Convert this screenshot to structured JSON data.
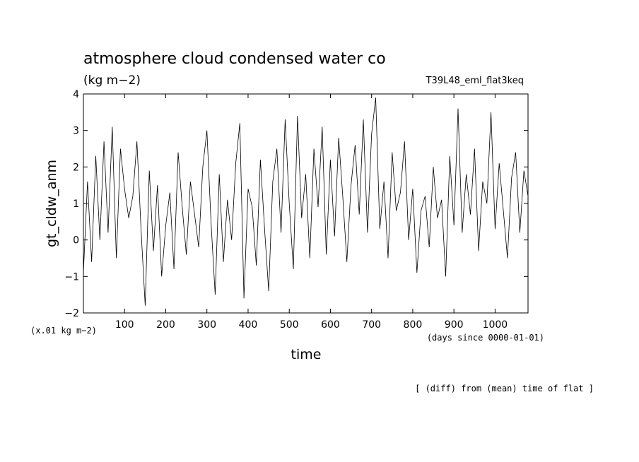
{
  "chart_data": {
    "type": "line",
    "title": "atmosphere cloud condensed water co",
    "units": "(kg m−2)",
    "experiment": "T39L48_eml_flat3keq",
    "ylabel": "gt_cldw_anm",
    "ylabel_scale": "(x.01 kg m−2)",
    "xlabel": "time",
    "xlabel_units": "(days since 0000-01-01)",
    "footnote": "[ (diff) from (mean) time of flat ]",
    "xlim": [
      0,
      1080
    ],
    "ylim": [
      -2,
      4
    ],
    "x_ticks": [
      100,
      200,
      300,
      400,
      500,
      600,
      700,
      800,
      900,
      1000
    ],
    "y_ticks": [
      -2,
      -1,
      0,
      1,
      2,
      3,
      4
    ],
    "grid": false,
    "series": [
      {
        "x": [
          0,
          10,
          20,
          30,
          40,
          50,
          60,
          70,
          80,
          90,
          100,
          110,
          120,
          130,
          140,
          150,
          160,
          170,
          180,
          190,
          200,
          210,
          220,
          230,
          240,
          250,
          260,
          270,
          280,
          290,
          300,
          310,
          320,
          330,
          340,
          350,
          360,
          370,
          380,
          390,
          400,
          410,
          420,
          430,
          440,
          450,
          460,
          470,
          480,
          490,
          500,
          510,
          520,
          530,
          540,
          550,
          560,
          570,
          580,
          590,
          600,
          610,
          620,
          630,
          640,
          650,
          660,
          670,
          680,
          690,
          700,
          710,
          720,
          730,
          740,
          750,
          760,
          770,
          780,
          790,
          800,
          810,
          820,
          830,
          840,
          850,
          860,
          870,
          880,
          890,
          900,
          910,
          920,
          930,
          940,
          950,
          960,
          970,
          980,
          990,
          1000,
          1010,
          1020,
          1030,
          1040,
          1050,
          1060,
          1070,
          1080
        ],
        "y": [
          -0.9,
          1.6,
          -0.6,
          2.3,
          0.0,
          2.7,
          0.2,
          3.1,
          -0.5,
          2.5,
          1.4,
          0.6,
          1.2,
          2.7,
          0.3,
          -1.8,
          1.9,
          -0.3,
          1.5,
          -1.0,
          0.4,
          1.3,
          -0.8,
          2.4,
          0.9,
          -0.4,
          1.6,
          0.7,
          -0.2,
          2.0,
          3.0,
          0.5,
          -1.5,
          1.8,
          -0.6,
          1.1,
          0.0,
          2.1,
          3.2,
          -1.6,
          1.4,
          0.9,
          -0.7,
          2.2,
          0.3,
          -1.4,
          1.6,
          2.5,
          0.2,
          3.3,
          1.0,
          -0.8,
          3.4,
          0.6,
          1.8,
          -0.5,
          2.5,
          0.9,
          3.1,
          -0.4,
          2.2,
          0.1,
          2.8,
          1.2,
          -0.6,
          1.5,
          2.6,
          0.7,
          3.3,
          0.2,
          2.9,
          3.9,
          0.3,
          1.6,
          -0.5,
          2.4,
          0.8,
          1.3,
          2.7,
          0.0,
          1.4,
          -0.9,
          0.8,
          1.2,
          -0.2,
          2.0,
          0.6,
          1.1,
          -1.0,
          2.3,
          0.4,
          3.6,
          0.2,
          1.8,
          0.7,
          2.5,
          -0.3,
          1.6,
          1.0,
          3.5,
          0.3,
          2.1,
          0.8,
          -0.5,
          1.7,
          2.4,
          0.2,
          1.9,
          1.2
        ]
      }
    ]
  }
}
